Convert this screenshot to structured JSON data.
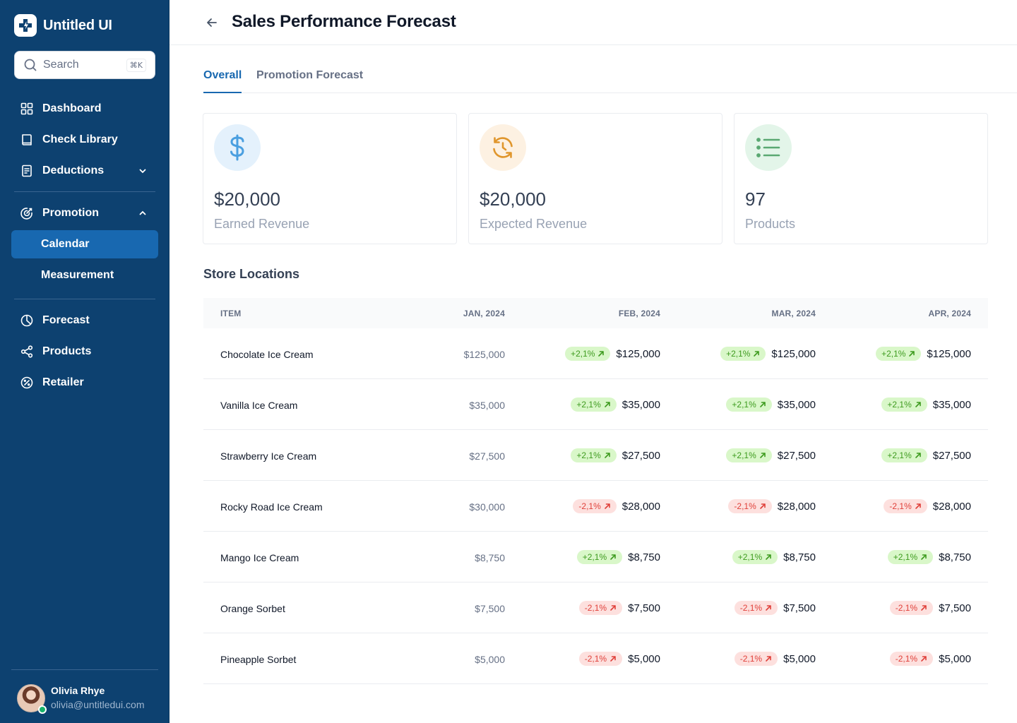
{
  "app": {
    "name": "Untitled UI"
  },
  "search": {
    "placeholder": "Search",
    "shortcut": "⌘K"
  },
  "nav": {
    "dashboard": "Dashboard",
    "check_library": "Check Library",
    "deductions": "Deductions",
    "promotion": "Promotion",
    "calendar": "Calendar",
    "measurement": "Measurement",
    "forecast": "Forecast",
    "products": "Products",
    "retailer": "Retailer"
  },
  "user": {
    "name": "Olivia Rhye",
    "email": "olivia@untitledui.com"
  },
  "header": {
    "title": "Sales Performance Forecast"
  },
  "tabs": [
    {
      "label": "Overall"
    },
    {
      "label": "Promotion Forecast"
    }
  ],
  "stats": [
    {
      "value": "$20,000",
      "label": "Earned Revenue",
      "icon": "dollar-icon",
      "color": "#4a9fe0"
    },
    {
      "value": "$20,000",
      "label": "Expected Revenue",
      "icon": "clock-refresh-icon",
      "color": "#e0962c"
    },
    {
      "value": "97",
      "label": "Products",
      "icon": "list-icon",
      "color": "#5aa872"
    }
  ],
  "table": {
    "title": "Store Locations",
    "headers": {
      "item": "ITEM",
      "jan": "JAN, 2024",
      "feb": "FEB, 2024",
      "mar": "MAR, 2024",
      "apr": "APR, 2024"
    },
    "rows": [
      {
        "item": "Chocolate Ice Cream",
        "jan": "$125,000",
        "feb": {
          "change": "+2,1%",
          "trend": "up",
          "value": "$125,000"
        },
        "mar": {
          "change": "+2,1%",
          "trend": "up",
          "value": "$125,000"
        },
        "apr": {
          "change": "+2,1%",
          "trend": "up",
          "value": "$125,000"
        }
      },
      {
        "item": "Vanilla Ice Cream",
        "jan": "$35,000",
        "feb": {
          "change": "+2,1%",
          "trend": "up",
          "value": "$35,000"
        },
        "mar": {
          "change": "+2,1%",
          "trend": "up",
          "value": "$35,000"
        },
        "apr": {
          "change": "+2,1%",
          "trend": "up",
          "value": "$35,000"
        }
      },
      {
        "item": "Strawberry Ice Cream",
        "jan": "$27,500",
        "feb": {
          "change": "+2,1%",
          "trend": "up",
          "value": "$27,500"
        },
        "mar": {
          "change": "+2,1%",
          "trend": "up",
          "value": "$27,500"
        },
        "apr": {
          "change": "+2,1%",
          "trend": "up",
          "value": "$27,500"
        }
      },
      {
        "item": "Rocky Road Ice Cream",
        "jan": "$30,000",
        "feb": {
          "change": "-2,1%",
          "trend": "down",
          "value": "$28,000"
        },
        "mar": {
          "change": "-2,1%",
          "trend": "down",
          "value": "$28,000"
        },
        "apr": {
          "change": "-2,1%",
          "trend": "down",
          "value": "$28,000"
        }
      },
      {
        "item": "Mango Ice Cream",
        "jan": "$8,750",
        "feb": {
          "change": "+2,1%",
          "trend": "up",
          "value": "$8,750"
        },
        "mar": {
          "change": "+2,1%",
          "trend": "up",
          "value": "$8,750"
        },
        "apr": {
          "change": "+2,1%",
          "trend": "up",
          "value": "$8,750"
        }
      },
      {
        "item": "Orange Sorbet",
        "jan": "$7,500",
        "feb": {
          "change": "-2,1%",
          "trend": "down",
          "value": "$7,500"
        },
        "mar": {
          "change": "-2,1%",
          "trend": "down",
          "value": "$7,500"
        },
        "apr": {
          "change": "-2,1%",
          "trend": "down",
          "value": "$7,500"
        }
      },
      {
        "item": "Pineapple Sorbet",
        "jan": "$5,000",
        "feb": {
          "change": "-2,1%",
          "trend": "down",
          "value": "$5,000"
        },
        "mar": {
          "change": "-2,1%",
          "trend": "down",
          "value": "$5,000"
        },
        "apr": {
          "change": "-2,1%",
          "trend": "down",
          "value": "$5,000"
        }
      }
    ]
  }
}
